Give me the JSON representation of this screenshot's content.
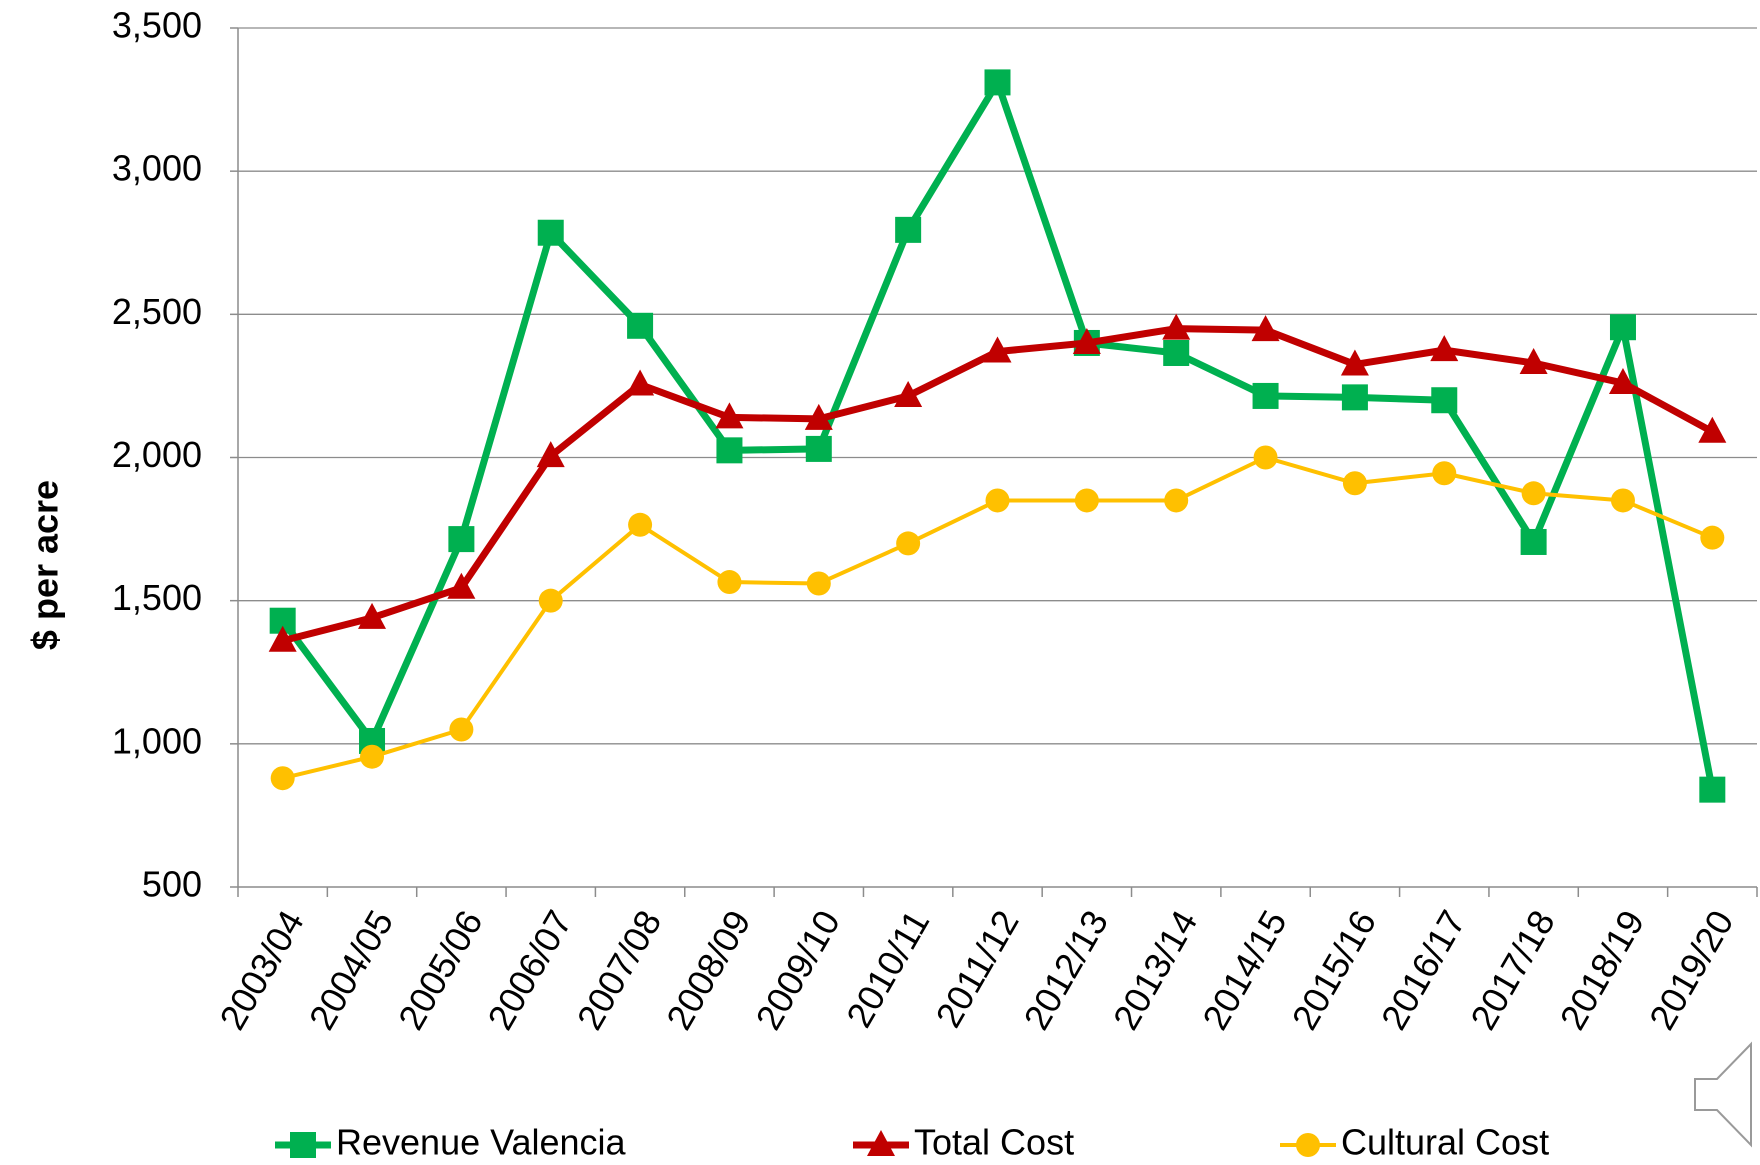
{
  "chart_data": {
    "type": "line",
    "y_label": "$ per acre",
    "categories": [
      "2003/04",
      "2004/05",
      "2005/06",
      "2006/07",
      "2007/08",
      "2008/09",
      "2009/10",
      "2010/11",
      "2011/12",
      "2012/13",
      "2013/14",
      "2014/15",
      "2015/16",
      "2016/17",
      "2017/18",
      "2018/19",
      "2019/20"
    ],
    "series": [
      {
        "name": "Revenue Valencia",
        "color": "#00b050",
        "marker": "square",
        "values": [
          1430,
          1010,
          1715,
          2785,
          2460,
          2025,
          2030,
          2795,
          3310,
          2400,
          2365,
          2215,
          2210,
          2200,
          1705,
          2455,
          840
        ]
      },
      {
        "name": "Total Cost",
        "color": "#c00000",
        "marker": "triangle",
        "values": [
          1360,
          1440,
          1545,
          2005,
          2255,
          2140,
          2135,
          2215,
          2370,
          2400,
          2450,
          2445,
          2325,
          2375,
          2330,
          2260,
          2090
        ]
      },
      {
        "name": "Cultural Cost",
        "color": "#ffc000",
        "marker": "circle",
        "values": [
          880,
          955,
          1050,
          1500,
          1765,
          1565,
          1560,
          1700,
          1850,
          1850,
          1850,
          2000,
          1910,
          1945,
          1875,
          1850,
          1720
        ]
      }
    ],
    "ylim": [
      500,
      3500
    ],
    "yticks": [
      500,
      {
        "value": 1000,
        "label": "1,000"
      },
      {
        "value": 1500,
        "label": "1,500"
      },
      {
        "value": 2000,
        "label": "2,000"
      },
      {
        "value": 2500,
        "label": "2,500"
      },
      {
        "value": 3000,
        "label": "3,000"
      },
      {
        "value": 3500,
        "label": "3,500"
      }
    ],
    "grid": true,
    "legend": "bottom"
  }
}
